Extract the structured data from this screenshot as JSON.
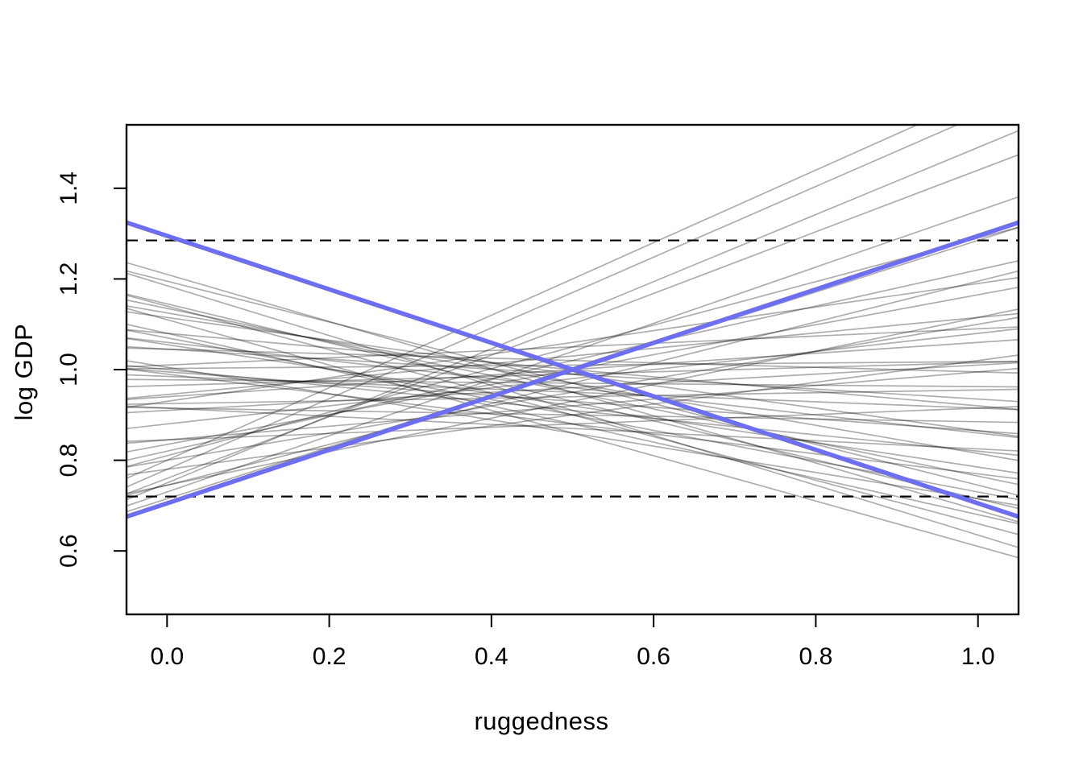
{
  "figure": {
    "background": "#ffffff",
    "description": "Prior predictive simulation plot: regression lines of log GDP on ruggedness"
  },
  "chart_data": {
    "type": "line",
    "title": "",
    "xlabel": "ruggedness",
    "ylabel": "log GDP",
    "xlim": [
      -0.05,
      1.05
    ],
    "ylim": [
      0.46,
      1.54
    ],
    "x_ticks": [
      0.0,
      0.2,
      0.4,
      0.6,
      0.8,
      1.0
    ],
    "x_tick_labels": [
      "0.0",
      "0.2",
      "0.4",
      "0.6",
      "0.8",
      "1.0"
    ],
    "y_ticks": [
      0.6,
      0.8,
      1.0,
      1.2,
      1.4
    ],
    "y_tick_labels": [
      "0.6",
      "0.8",
      "1.0",
      "1.2",
      "1.4"
    ],
    "grid": false,
    "legend": "none",
    "box": true,
    "dashed_bounds": {
      "style": "dashed",
      "color": "#000000",
      "values": [
        1.285,
        0.72
      ]
    },
    "line_model": "y = a + b*(x - 0.5)",
    "pivot_x": 0.5,
    "highlight_lines": {
      "color": "#6E6EF0",
      "width": 5.5,
      "coefficients": [
        [
          1.0,
          0.59
        ],
        [
          1.0,
          -0.59
        ]
      ]
    },
    "prior_lines": {
      "color": "#000000",
      "opacity": 0.32,
      "width": 1.7,
      "coefficients": [
        [
          1.2,
          0.8
        ],
        [
          1.17,
          0.78
        ],
        [
          1.12,
          0.74
        ],
        [
          1.1,
          0.68
        ],
        [
          1.04,
          0.62
        ],
        [
          1.0,
          0.57
        ],
        [
          1.05,
          0.48
        ],
        [
          0.97,
          0.45
        ],
        [
          1.02,
          0.4
        ],
        [
          0.93,
          0.37
        ],
        [
          1.0,
          0.33
        ],
        [
          0.95,
          0.3
        ],
        [
          1.06,
          0.26
        ],
        [
          0.9,
          0.24
        ],
        [
          0.98,
          0.2
        ],
        [
          1.03,
          0.17
        ],
        [
          0.92,
          0.15
        ],
        [
          1.0,
          0.12
        ],
        [
          0.96,
          0.1
        ],
        [
          1.05,
          0.08
        ],
        [
          0.88,
          0.07
        ],
        [
          0.99,
          0.05
        ],
        [
          0.94,
          0.03
        ],
        [
          1.01,
          0.015
        ],
        [
          0.97,
          -0.015
        ],
        [
          0.9,
          -0.03
        ],
        [
          1.02,
          -0.05
        ],
        [
          0.95,
          -0.07
        ],
        [
          0.87,
          -0.09
        ],
        [
          0.99,
          -0.11
        ],
        [
          0.93,
          -0.13
        ],
        [
          1.0,
          -0.16
        ],
        [
          0.91,
          -0.18
        ],
        [
          0.96,
          -0.2
        ],
        [
          0.88,
          -0.22
        ],
        [
          0.99,
          -0.25
        ],
        [
          0.92,
          -0.27
        ],
        [
          0.86,
          -0.29
        ],
        [
          0.97,
          -0.31
        ],
        [
          0.9,
          -0.34
        ],
        [
          0.95,
          -0.37
        ],
        [
          0.88,
          -0.4
        ],
        [
          0.93,
          -0.43
        ],
        [
          0.97,
          -0.45
        ],
        [
          0.9,
          -0.48
        ],
        [
          0.95,
          -0.52
        ],
        [
          0.91,
          -0.55
        ],
        [
          0.86,
          -0.5
        ]
      ]
    }
  }
}
